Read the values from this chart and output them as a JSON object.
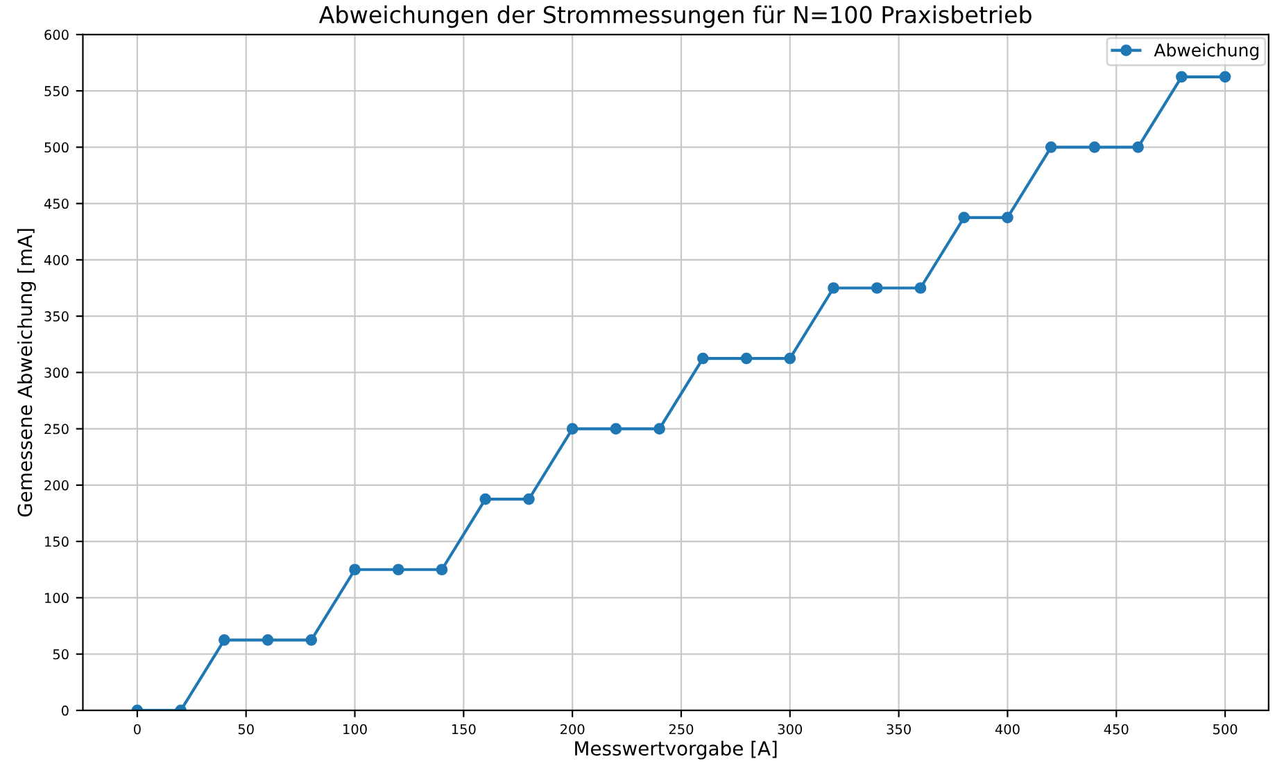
{
  "chart_data": {
    "type": "line",
    "title": "Abweichungen der Strommessungen für N=100 Praxisbetrieb",
    "xlabel": "Messwertvorgabe [A]",
    "ylabel": "Gemessene Abweichung [mA]",
    "x": [
      0,
      20,
      40,
      60,
      80,
      100,
      120,
      140,
      160,
      180,
      200,
      220,
      240,
      260,
      280,
      300,
      320,
      340,
      360,
      380,
      400,
      420,
      440,
      460,
      480,
      500
    ],
    "series": [
      {
        "name": "Abweichung",
        "color": "#1f77b4",
        "values": [
          0,
          0,
          62.5,
          62.5,
          62.5,
          125,
          125,
          125,
          187.5,
          187.5,
          250,
          250,
          250,
          312.5,
          312.5,
          312.5,
          375,
          375,
          375,
          437.5,
          437.5,
          500,
          500,
          500,
          562.5,
          562.5
        ]
      }
    ],
    "xlim": [
      -25,
      520
    ],
    "xticks": [
      0,
      50,
      100,
      150,
      200,
      250,
      300,
      350,
      400,
      450,
      500
    ],
    "ylim": [
      0,
      600
    ],
    "yticks": [
      0,
      50,
      100,
      150,
      200,
      250,
      300,
      350,
      400,
      450,
      500,
      550,
      600
    ],
    "grid": true,
    "legend": "top right",
    "marker": "circle",
    "line_style": "solid"
  }
}
